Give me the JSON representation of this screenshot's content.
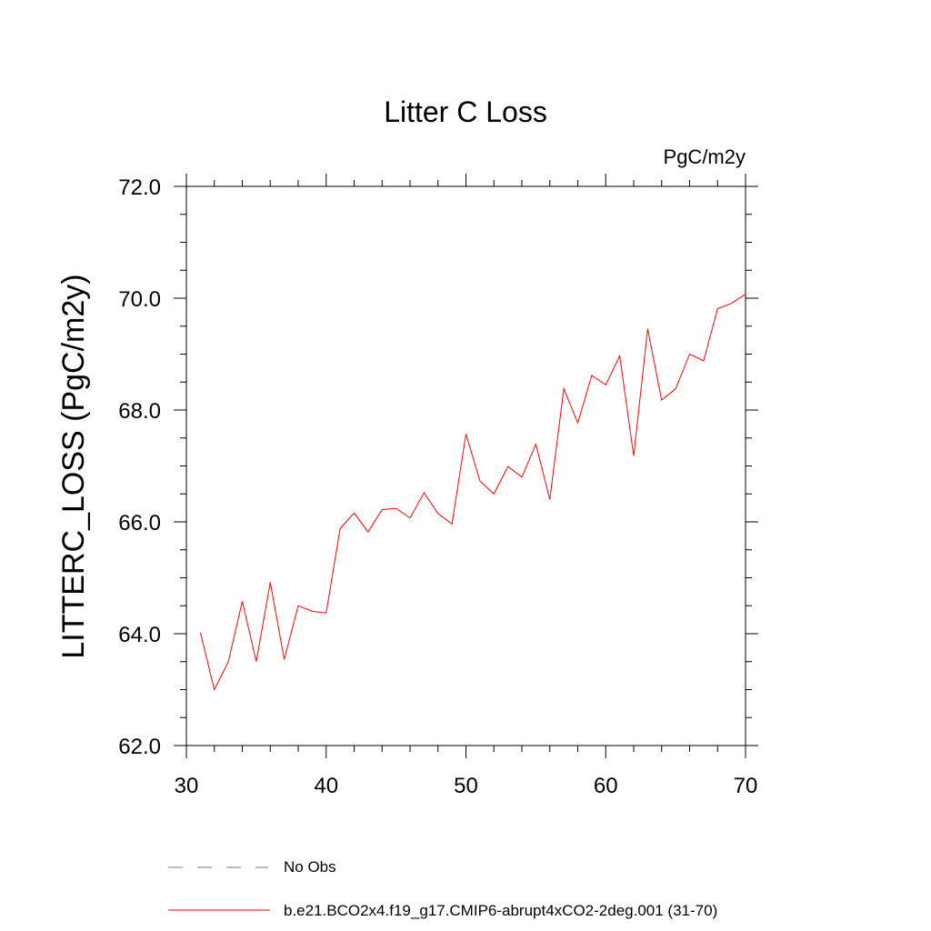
{
  "chart_data": {
    "type": "line",
    "title": "Litter C Loss",
    "units_label": "PgC/m2y",
    "xlabel": "",
    "ylabel": "LITTERC_LOSS  (PgC/m2y)",
    "xlim": [
      30,
      70
    ],
    "ylim": [
      62,
      72
    ],
    "xticks": [
      30,
      40,
      50,
      60,
      70
    ],
    "xtick_labels": [
      "30",
      "40",
      "50",
      "60",
      "70"
    ],
    "yticks": [
      62,
      64,
      66,
      68,
      70,
      72
    ],
    "ytick_labels": [
      "62.0",
      "64.0",
      "66.0",
      "68.0",
      "70.0",
      "72.0"
    ],
    "x": [
      31,
      32,
      33,
      34,
      35,
      36,
      37,
      38,
      39,
      40,
      41,
      42,
      43,
      44,
      45,
      46,
      47,
      48,
      49,
      50,
      51,
      52,
      53,
      54,
      55,
      56,
      57,
      58,
      59,
      60,
      61,
      62,
      63,
      64,
      65,
      66,
      67,
      68,
      69,
      70
    ],
    "series": [
      {
        "name": "b.e21.BCO2x4.f19_g17.CMIP6-abrupt4xCO2-2deg.001 (31-70)",
        "color": "#ff0000",
        "values": [
          64.02,
          63.0,
          63.5,
          64.58,
          63.5,
          64.92,
          63.54,
          64.5,
          64.4,
          64.37,
          65.88,
          66.16,
          65.82,
          66.22,
          66.24,
          66.07,
          66.52,
          66.15,
          65.96,
          67.57,
          66.73,
          66.5,
          66.99,
          66.8,
          67.39,
          66.4,
          68.38,
          67.77,
          68.62,
          68.45,
          68.97,
          67.18,
          69.45,
          68.18,
          68.38,
          69.0,
          68.88,
          69.81,
          69.91,
          70.07
        ]
      }
    ],
    "legend": [
      {
        "label": "No Obs",
        "style": "dashed",
        "color": "#7b6fc4"
      },
      {
        "label": "b.e21.BCO2x4.f19_g17.CMIP6-abrupt4xCO2-2deg.001 (31-70)",
        "style": "solid",
        "color": "#ff0000"
      }
    ],
    "legend_position": "bottom"
  }
}
